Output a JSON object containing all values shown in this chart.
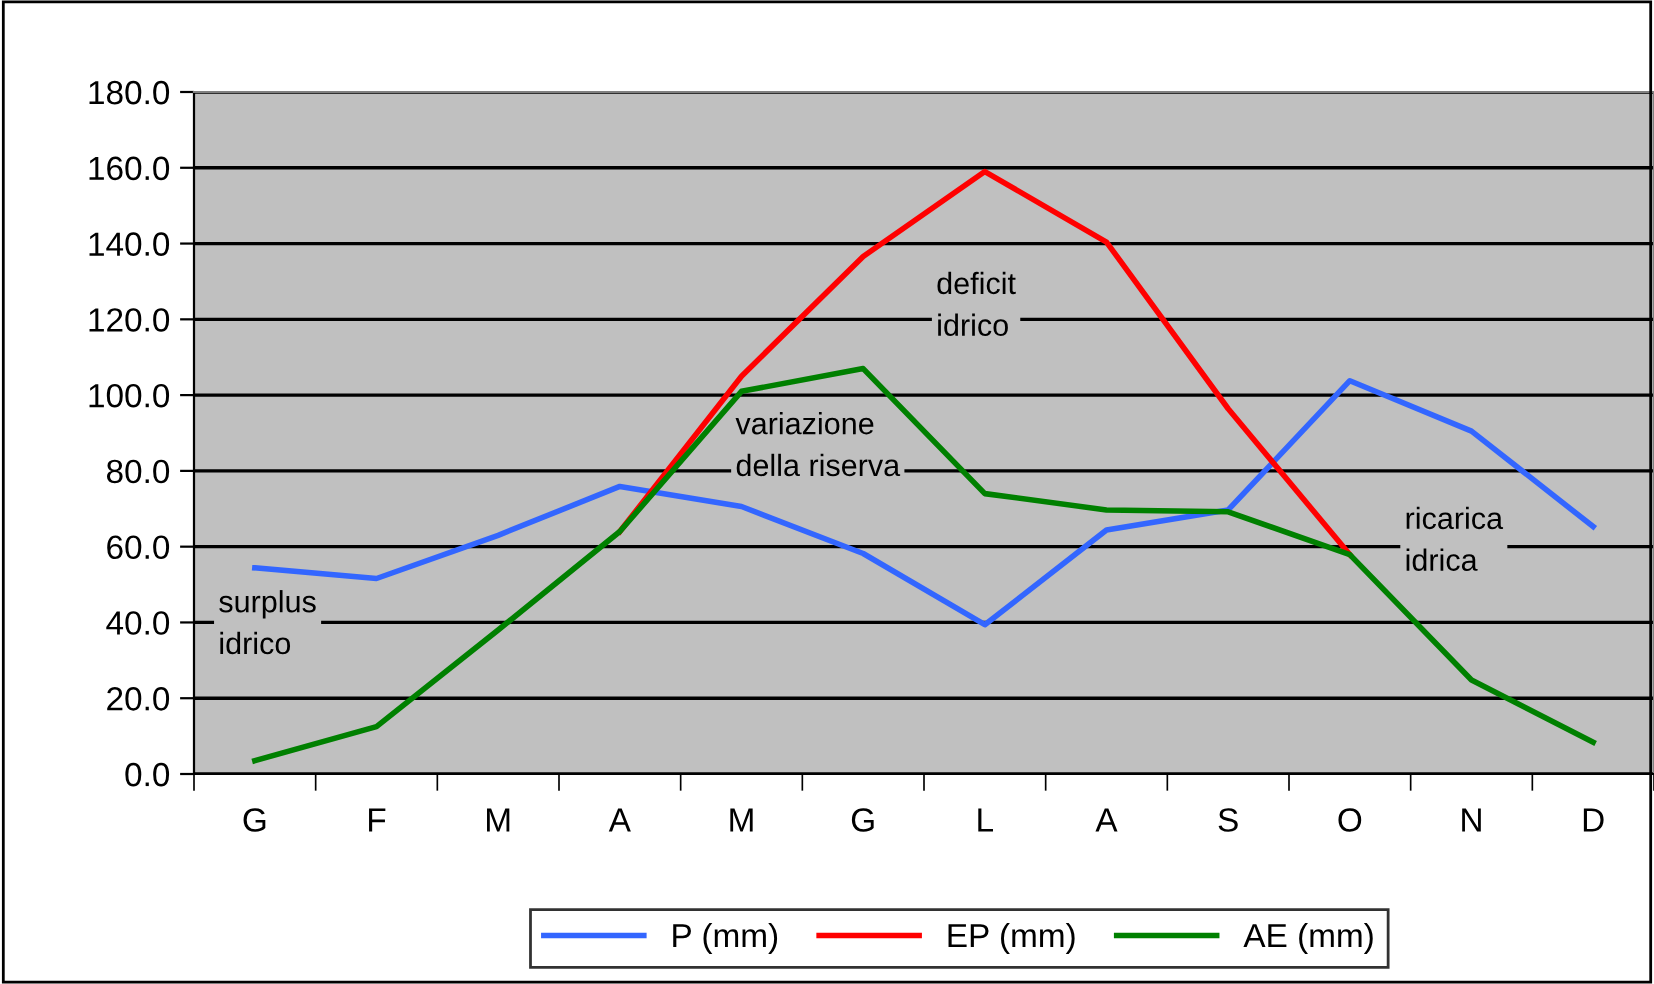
{
  "chart_data": {
    "type": "line",
    "categories": [
      "G",
      "F",
      "M",
      "A",
      "M",
      "G",
      "L",
      "A",
      "S",
      "O",
      "N",
      "D"
    ],
    "series": [
      {
        "name": "P (mm)",
        "color": "#3366ff",
        "values": [
          54.4,
          51.6,
          63,
          75.9,
          70.6,
          58.2,
          39.4,
          64.4,
          69.7,
          103.8,
          90.5,
          65.3
        ]
      },
      {
        "name": "EP (mm)",
        "color": "#ff0000",
        "values": [
          null,
          null,
          null,
          64,
          105,
          136.6,
          159,
          140.4,
          96.4,
          57.9,
          null,
          null
        ]
      },
      {
        "name": "AE (mm)",
        "color": "#008000",
        "values": [
          3.5,
          12.5,
          38,
          64,
          101,
          107,
          74,
          69.7,
          69.2,
          57.9,
          24.8,
          8.4
        ]
      }
    ],
    "ylim": [
      0,
      180
    ],
    "yticks": [
      {
        "value": 0,
        "label": "0.0"
      },
      {
        "value": 20,
        "label": "20.0"
      },
      {
        "value": 40,
        "label": "40.0"
      },
      {
        "value": 60,
        "label": "60.0"
      },
      {
        "value": 80,
        "label": "80.0"
      },
      {
        "value": 100,
        "label": "100.0"
      },
      {
        "value": 120,
        "label": "120.0"
      },
      {
        "value": 140,
        "label": "140.0"
      },
      {
        "value": 160,
        "label": "160.0"
      },
      {
        "value": 180,
        "label": "180.0"
      }
    ],
    "grid": "y",
    "legend": "bottom",
    "marker": "none",
    "line_style": "solid",
    "annotations": [
      "surplus\nidrico",
      "variazione\ndella riserva",
      "deficit\nidrico",
      "ricarica\nidrica"
    ]
  }
}
